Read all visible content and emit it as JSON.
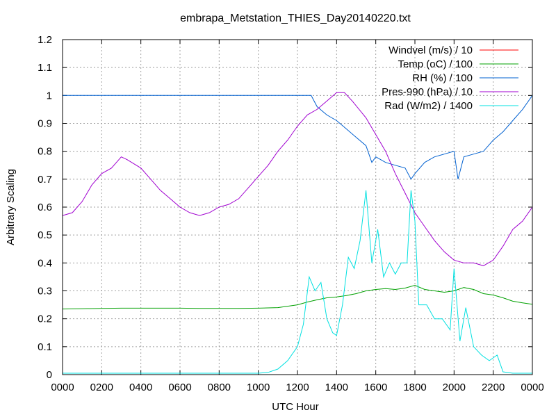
{
  "chart_data": {
    "type": "line",
    "title": "embrapa_Metstation_THIES_Day20140220.txt",
    "xlabel": "UTC Hour",
    "ylabel": "Arbitrary Scaling",
    "xlim": [
      0,
      24
    ],
    "ylim": [
      0,
      1.2
    ],
    "x_ticks": [
      {
        "value": 0,
        "label": "0000"
      },
      {
        "value": 2,
        "label": "0200"
      },
      {
        "value": 4,
        "label": "0400"
      },
      {
        "value": 6,
        "label": "0600"
      },
      {
        "value": 8,
        "label": "0800"
      },
      {
        "value": 10,
        "label": "1000"
      },
      {
        "value": 12,
        "label": "1200"
      },
      {
        "value": 14,
        "label": "1400"
      },
      {
        "value": 16,
        "label": "1600"
      },
      {
        "value": 18,
        "label": "1800"
      },
      {
        "value": 20,
        "label": "2000"
      },
      {
        "value": 22,
        "label": "2200"
      },
      {
        "value": 24,
        "label": "0000"
      }
    ],
    "y_ticks": [
      {
        "value": 0,
        "label": "0"
      },
      {
        "value": 0.1,
        "label": "0.1"
      },
      {
        "value": 0.2,
        "label": "0.2"
      },
      {
        "value": 0.3,
        "label": "0.3"
      },
      {
        "value": 0.4,
        "label": "0.4"
      },
      {
        "value": 0.5,
        "label": "0.5"
      },
      {
        "value": 0.6,
        "label": "0.6"
      },
      {
        "value": 0.7,
        "label": "0.7"
      },
      {
        "value": 0.8,
        "label": "0.8"
      },
      {
        "value": 0.9,
        "label": "0.9"
      },
      {
        "value": 1.0,
        "label": "1"
      },
      {
        "value": 1.1,
        "label": "1.1"
      },
      {
        "value": 1.2,
        "label": "1.2"
      }
    ],
    "grid": true,
    "legend_position": "top-right",
    "series": [
      {
        "name": "Windvel (m/s) / 10",
        "color": "#ff0000",
        "points": []
      },
      {
        "name": "Temp (oC) / 100",
        "color": "#00a000",
        "points": [
          [
            0,
            0.235
          ],
          [
            1,
            0.236
          ],
          [
            2,
            0.237
          ],
          [
            3,
            0.238
          ],
          [
            4,
            0.238
          ],
          [
            5,
            0.238
          ],
          [
            6,
            0.238
          ],
          [
            7,
            0.237
          ],
          [
            8,
            0.237
          ],
          [
            9,
            0.237
          ],
          [
            10,
            0.238
          ],
          [
            11,
            0.24
          ],
          [
            11.5,
            0.245
          ],
          [
            12,
            0.25
          ],
          [
            12.5,
            0.26
          ],
          [
            13,
            0.268
          ],
          [
            13.5,
            0.275
          ],
          [
            14,
            0.278
          ],
          [
            14.5,
            0.283
          ],
          [
            15,
            0.29
          ],
          [
            15.5,
            0.3
          ],
          [
            16,
            0.305
          ],
          [
            16.5,
            0.308
          ],
          [
            17,
            0.305
          ],
          [
            17.5,
            0.31
          ],
          [
            18,
            0.32
          ],
          [
            18.5,
            0.305
          ],
          [
            19,
            0.3
          ],
          [
            19.5,
            0.295
          ],
          [
            20,
            0.3
          ],
          [
            20.5,
            0.312
          ],
          [
            21,
            0.305
          ],
          [
            21.5,
            0.29
          ],
          [
            22,
            0.285
          ],
          [
            22.5,
            0.275
          ],
          [
            23,
            0.263
          ],
          [
            23.5,
            0.257
          ],
          [
            24,
            0.252
          ]
        ]
      },
      {
        "name": "RH (%) / 100",
        "color": "#0060d0",
        "points": [
          [
            0,
            1.0
          ],
          [
            12.7,
            1.0
          ],
          [
            13,
            0.96
          ],
          [
            13.5,
            0.93
          ],
          [
            14,
            0.91
          ],
          [
            14.5,
            0.88
          ],
          [
            15,
            0.85
          ],
          [
            15.5,
            0.82
          ],
          [
            15.8,
            0.76
          ],
          [
            16,
            0.78
          ],
          [
            16.5,
            0.76
          ],
          [
            17,
            0.75
          ],
          [
            17.5,
            0.74
          ],
          [
            17.8,
            0.7
          ],
          [
            18,
            0.72
          ],
          [
            18.5,
            0.76
          ],
          [
            19,
            0.78
          ],
          [
            19.5,
            0.79
          ],
          [
            20,
            0.8
          ],
          [
            20.2,
            0.7
          ],
          [
            20.5,
            0.78
          ],
          [
            21,
            0.79
          ],
          [
            21.5,
            0.8
          ],
          [
            22,
            0.84
          ],
          [
            22.5,
            0.87
          ],
          [
            23,
            0.91
          ],
          [
            23.5,
            0.95
          ],
          [
            24,
            1.0
          ]
        ]
      },
      {
        "name": "Pres-990 (hPa) / 10",
        "color": "#a000d0",
        "points": [
          [
            0,
            0.57
          ],
          [
            0.5,
            0.58
          ],
          [
            1,
            0.62
          ],
          [
            1.5,
            0.68
          ],
          [
            2,
            0.72
          ],
          [
            2.5,
            0.74
          ],
          [
            3,
            0.78
          ],
          [
            3.3,
            0.77
          ],
          [
            4,
            0.74
          ],
          [
            4.5,
            0.7
          ],
          [
            5,
            0.66
          ],
          [
            5.5,
            0.63
          ],
          [
            6,
            0.6
          ],
          [
            6.5,
            0.58
          ],
          [
            7,
            0.57
          ],
          [
            7.5,
            0.58
          ],
          [
            8,
            0.6
          ],
          [
            8.5,
            0.61
          ],
          [
            9,
            0.63
          ],
          [
            9.5,
            0.67
          ],
          [
            10,
            0.71
          ],
          [
            10.5,
            0.75
          ],
          [
            11,
            0.8
          ],
          [
            11.5,
            0.84
          ],
          [
            12,
            0.89
          ],
          [
            12.5,
            0.93
          ],
          [
            13,
            0.95
          ],
          [
            13.5,
            0.98
          ],
          [
            14,
            1.01
          ],
          [
            14.4,
            1.01
          ],
          [
            14.8,
            0.98
          ],
          [
            15.5,
            0.92
          ],
          [
            16,
            0.86
          ],
          [
            16.5,
            0.8
          ],
          [
            17,
            0.72
          ],
          [
            17.5,
            0.65
          ],
          [
            18,
            0.58
          ],
          [
            18.5,
            0.53
          ],
          [
            19,
            0.48
          ],
          [
            19.5,
            0.44
          ],
          [
            20,
            0.41
          ],
          [
            20.5,
            0.4
          ],
          [
            21,
            0.4
          ],
          [
            21.5,
            0.39
          ],
          [
            22,
            0.41
          ],
          [
            22.5,
            0.46
          ],
          [
            23,
            0.52
          ],
          [
            23.5,
            0.55
          ],
          [
            24,
            0.6
          ]
        ]
      },
      {
        "name": "Rad (W/m2) / 1400",
        "color": "#00e0e0",
        "points": [
          [
            0,
            0.005
          ],
          [
            10,
            0.005
          ],
          [
            10.5,
            0.008
          ],
          [
            11,
            0.02
          ],
          [
            11.5,
            0.05
          ],
          [
            12,
            0.1
          ],
          [
            12.3,
            0.18
          ],
          [
            12.6,
            0.35
          ],
          [
            12.9,
            0.3
          ],
          [
            13.2,
            0.33
          ],
          [
            13.5,
            0.2
          ],
          [
            13.8,
            0.15
          ],
          [
            14,
            0.14
          ],
          [
            14.3,
            0.25
          ],
          [
            14.6,
            0.42
          ],
          [
            14.9,
            0.38
          ],
          [
            15.2,
            0.48
          ],
          [
            15.5,
            0.66
          ],
          [
            15.8,
            0.4
          ],
          [
            16.1,
            0.52
          ],
          [
            16.4,
            0.35
          ],
          [
            16.7,
            0.4
          ],
          [
            17,
            0.36
          ],
          [
            17.3,
            0.4
          ],
          [
            17.6,
            0.4
          ],
          [
            17.8,
            0.66
          ],
          [
            18,
            0.55
          ],
          [
            18.2,
            0.25
          ],
          [
            18.6,
            0.25
          ],
          [
            19,
            0.2
          ],
          [
            19.4,
            0.2
          ],
          [
            19.8,
            0.16
          ],
          [
            20,
            0.38
          ],
          [
            20.3,
            0.12
          ],
          [
            20.6,
            0.24
          ],
          [
            21,
            0.1
          ],
          [
            21.4,
            0.07
          ],
          [
            21.8,
            0.05
          ],
          [
            22.2,
            0.07
          ],
          [
            22.5,
            0.01
          ],
          [
            23,
            0.005
          ],
          [
            24,
            0.005
          ]
        ]
      }
    ]
  }
}
